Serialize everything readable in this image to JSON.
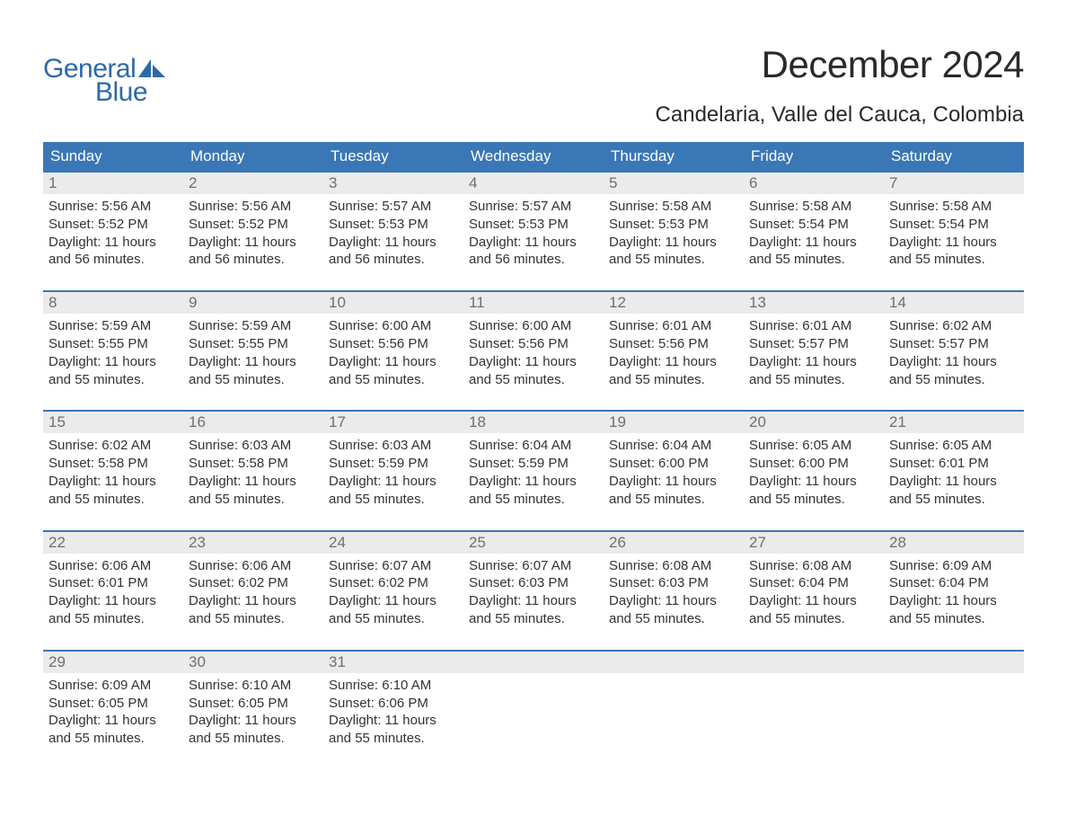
{
  "logo": {
    "text1": "General",
    "text2": "Blue"
  },
  "title": "December 2024",
  "location": "Candelaria, Valle del Cauca, Colombia",
  "colors": {
    "header_bg": "#3a77b7",
    "header_text": "#ffffff",
    "week_border": "#3a77b7",
    "daynum_bg": "#ebebeb",
    "daynum_text": "#6f6f6f",
    "body_text": "#333333",
    "logo_color": "#2b6aa8",
    "page_bg": "#ffffff"
  },
  "typography": {
    "title_fontsize": 42,
    "location_fontsize": 24,
    "weekday_fontsize": 17,
    "daynum_fontsize": 17,
    "body_fontsize": 15,
    "logo_fontsize": 30
  },
  "calendar": {
    "type": "table",
    "columns": [
      "Sunday",
      "Monday",
      "Tuesday",
      "Wednesday",
      "Thursday",
      "Friday",
      "Saturday"
    ],
    "weeks": [
      [
        {
          "day": "1",
          "sunrise": "5:56 AM",
          "sunset": "5:52 PM",
          "daylight": "11 hours and 56 minutes."
        },
        {
          "day": "2",
          "sunrise": "5:56 AM",
          "sunset": "5:52 PM",
          "daylight": "11 hours and 56 minutes."
        },
        {
          "day": "3",
          "sunrise": "5:57 AM",
          "sunset": "5:53 PM",
          "daylight": "11 hours and 56 minutes."
        },
        {
          "day": "4",
          "sunrise": "5:57 AM",
          "sunset": "5:53 PM",
          "daylight": "11 hours and 56 minutes."
        },
        {
          "day": "5",
          "sunrise": "5:58 AM",
          "sunset": "5:53 PM",
          "daylight": "11 hours and 55 minutes."
        },
        {
          "day": "6",
          "sunrise": "5:58 AM",
          "sunset": "5:54 PM",
          "daylight": "11 hours and 55 minutes."
        },
        {
          "day": "7",
          "sunrise": "5:58 AM",
          "sunset": "5:54 PM",
          "daylight": "11 hours and 55 minutes."
        }
      ],
      [
        {
          "day": "8",
          "sunrise": "5:59 AM",
          "sunset": "5:55 PM",
          "daylight": "11 hours and 55 minutes."
        },
        {
          "day": "9",
          "sunrise": "5:59 AM",
          "sunset": "5:55 PM",
          "daylight": "11 hours and 55 minutes."
        },
        {
          "day": "10",
          "sunrise": "6:00 AM",
          "sunset": "5:56 PM",
          "daylight": "11 hours and 55 minutes."
        },
        {
          "day": "11",
          "sunrise": "6:00 AM",
          "sunset": "5:56 PM",
          "daylight": "11 hours and 55 minutes."
        },
        {
          "day": "12",
          "sunrise": "6:01 AM",
          "sunset": "5:56 PM",
          "daylight": "11 hours and 55 minutes."
        },
        {
          "day": "13",
          "sunrise": "6:01 AM",
          "sunset": "5:57 PM",
          "daylight": "11 hours and 55 minutes."
        },
        {
          "day": "14",
          "sunrise": "6:02 AM",
          "sunset": "5:57 PM",
          "daylight": "11 hours and 55 minutes."
        }
      ],
      [
        {
          "day": "15",
          "sunrise": "6:02 AM",
          "sunset": "5:58 PM",
          "daylight": "11 hours and 55 minutes."
        },
        {
          "day": "16",
          "sunrise": "6:03 AM",
          "sunset": "5:58 PM",
          "daylight": "11 hours and 55 minutes."
        },
        {
          "day": "17",
          "sunrise": "6:03 AM",
          "sunset": "5:59 PM",
          "daylight": "11 hours and 55 minutes."
        },
        {
          "day": "18",
          "sunrise": "6:04 AM",
          "sunset": "5:59 PM",
          "daylight": "11 hours and 55 minutes."
        },
        {
          "day": "19",
          "sunrise": "6:04 AM",
          "sunset": "6:00 PM",
          "daylight": "11 hours and 55 minutes."
        },
        {
          "day": "20",
          "sunrise": "6:05 AM",
          "sunset": "6:00 PM",
          "daylight": "11 hours and 55 minutes."
        },
        {
          "day": "21",
          "sunrise": "6:05 AM",
          "sunset": "6:01 PM",
          "daylight": "11 hours and 55 minutes."
        }
      ],
      [
        {
          "day": "22",
          "sunrise": "6:06 AM",
          "sunset": "6:01 PM",
          "daylight": "11 hours and 55 minutes."
        },
        {
          "day": "23",
          "sunrise": "6:06 AM",
          "sunset": "6:02 PM",
          "daylight": "11 hours and 55 minutes."
        },
        {
          "day": "24",
          "sunrise": "6:07 AM",
          "sunset": "6:02 PM",
          "daylight": "11 hours and 55 minutes."
        },
        {
          "day": "25",
          "sunrise": "6:07 AM",
          "sunset": "6:03 PM",
          "daylight": "11 hours and 55 minutes."
        },
        {
          "day": "26",
          "sunrise": "6:08 AM",
          "sunset": "6:03 PM",
          "daylight": "11 hours and 55 minutes."
        },
        {
          "day": "27",
          "sunrise": "6:08 AM",
          "sunset": "6:04 PM",
          "daylight": "11 hours and 55 minutes."
        },
        {
          "day": "28",
          "sunrise": "6:09 AM",
          "sunset": "6:04 PM",
          "daylight": "11 hours and 55 minutes."
        }
      ],
      [
        {
          "day": "29",
          "sunrise": "6:09 AM",
          "sunset": "6:05 PM",
          "daylight": "11 hours and 55 minutes."
        },
        {
          "day": "30",
          "sunrise": "6:10 AM",
          "sunset": "6:05 PM",
          "daylight": "11 hours and 55 minutes."
        },
        {
          "day": "31",
          "sunrise": "6:10 AM",
          "sunset": "6:06 PM",
          "daylight": "11 hours and 55 minutes."
        },
        null,
        null,
        null,
        null
      ]
    ],
    "labels": {
      "sunrise": "Sunrise:",
      "sunset": "Sunset:",
      "daylight": "Daylight:"
    }
  }
}
